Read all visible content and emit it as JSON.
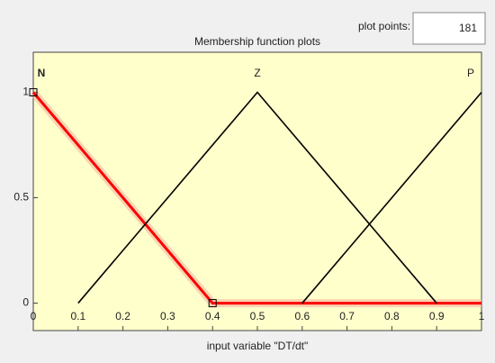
{
  "plot_points": {
    "label": "plot points:",
    "value": "181"
  },
  "chart_data": {
    "type": "line",
    "title": "Membership function plots",
    "x_label": "input variable \"DT/dt\"",
    "series": [
      {
        "name": "N",
        "color": "#ff0000",
        "x": [
          0,
          0.4,
          1
        ],
        "values": [
          1,
          0,
          0
        ]
      },
      {
        "name": "Z",
        "color": "#000000",
        "x": [
          0.1,
          0.5,
          0.9
        ],
        "values": [
          0,
          1,
          0
        ]
      },
      {
        "name": "P",
        "color": "#000000",
        "x": [
          0.6,
          1
        ],
        "values": [
          0,
          1
        ]
      }
    ],
    "xlim": [
      0,
      1
    ],
    "ylim": [
      -0.13,
      1.19
    ],
    "xticks": [
      0,
      0.1,
      0.2,
      0.3,
      0.4,
      0.5,
      0.6,
      0.7,
      0.8,
      0.9,
      1
    ],
    "yticks": [
      0,
      0.5,
      1
    ]
  }
}
